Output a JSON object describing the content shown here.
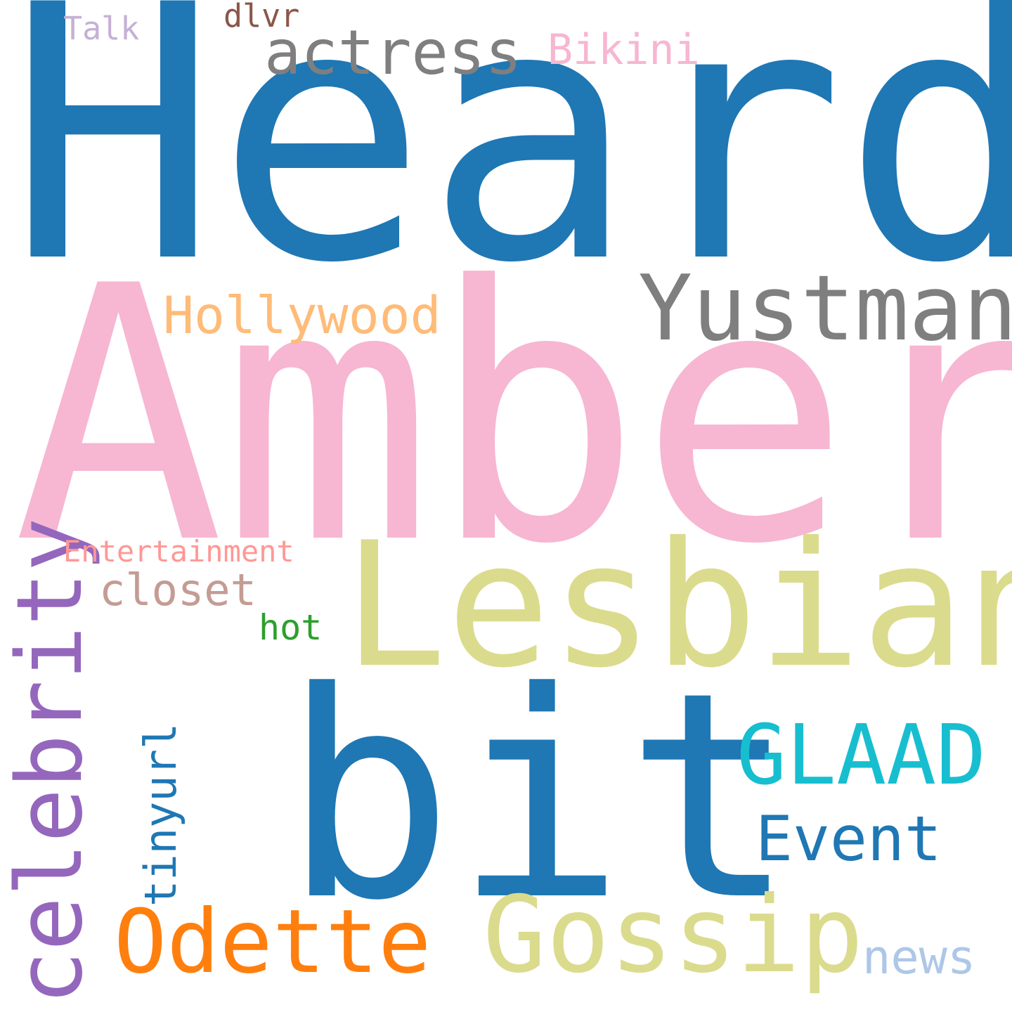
{
  "word_cloud": {
    "background": "#ffffff",
    "words": [
      {
        "text": "Heard",
        "color": "#1f77b4",
        "orientation": "horizontal"
      },
      {
        "text": "Amber",
        "color": "#f7b6d2",
        "orientation": "horizontal"
      },
      {
        "text": "Lesbian",
        "color": "#dbdb8d",
        "orientation": "horizontal"
      },
      {
        "text": "bit",
        "color": "#1f77b4",
        "orientation": "horizontal"
      },
      {
        "text": "Yustman",
        "color": "#7f7f7f",
        "orientation": "horizontal"
      },
      {
        "text": "celebrity",
        "color": "#9467bd",
        "orientation": "vertical"
      },
      {
        "text": "Gossip",
        "color": "#dbdb8d",
        "orientation": "horizontal"
      },
      {
        "text": "Odette",
        "color": "#ff7f0e",
        "orientation": "horizontal"
      },
      {
        "text": "GLAAD",
        "color": "#17becf",
        "orientation": "horizontal"
      },
      {
        "text": "Event",
        "color": "#1f77b4",
        "orientation": "horizontal"
      },
      {
        "text": "actress",
        "color": "#7f7f7f",
        "orientation": "horizontal"
      },
      {
        "text": "Hollywood",
        "color": "#ffbb78",
        "orientation": "horizontal"
      },
      {
        "text": "news",
        "color": "#aec7e8",
        "orientation": "horizontal"
      },
      {
        "text": "tinyurl",
        "color": "#1f77b4",
        "orientation": "vertical"
      },
      {
        "text": "closet",
        "color": "#c49c94",
        "orientation": "horizontal"
      },
      {
        "text": "Bikini",
        "color": "#f7b6d2",
        "orientation": "horizontal"
      },
      {
        "text": "hot",
        "color": "#2ca02c",
        "orientation": "horizontal"
      },
      {
        "text": "Talk",
        "color": "#c5b0d5",
        "orientation": "horizontal"
      },
      {
        "text": "dlvr",
        "color": "#8c564b",
        "orientation": "horizontal"
      },
      {
        "text": "Entertainment",
        "color": "#ff9896",
        "orientation": "horizontal"
      }
    ]
  }
}
